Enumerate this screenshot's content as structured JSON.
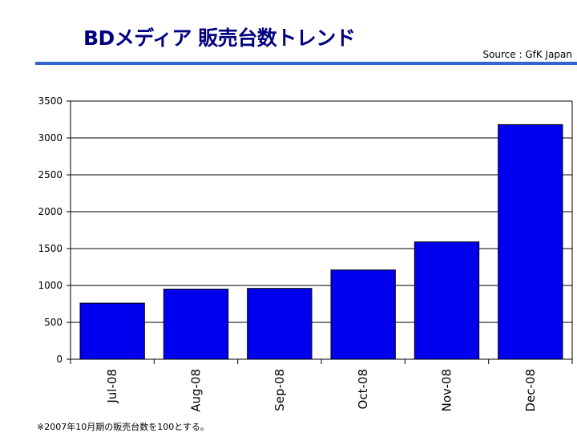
{
  "header": {
    "title": "BDメディア 販売台数トレンド",
    "source": "Source : GfK Japan"
  },
  "footnote": "※2007年10月期の販売台数を100とする。",
  "colors": {
    "title": "#000080",
    "rule": "#3366cc",
    "bar": "#0000ee",
    "grid": "#000000"
  },
  "chart_data": {
    "type": "bar",
    "categories": [
      "Jul-08",
      "Aug-08",
      "Sep-08",
      "Oct-08",
      "Nov-08",
      "Dec-08"
    ],
    "values": [
      760,
      950,
      960,
      1210,
      1590,
      3180
    ],
    "y_ticks": [
      0,
      500,
      1000,
      1500,
      2000,
      2500,
      3000,
      3500
    ],
    "ylim": [
      0,
      3500
    ],
    "grid": true,
    "legend": "none"
  }
}
